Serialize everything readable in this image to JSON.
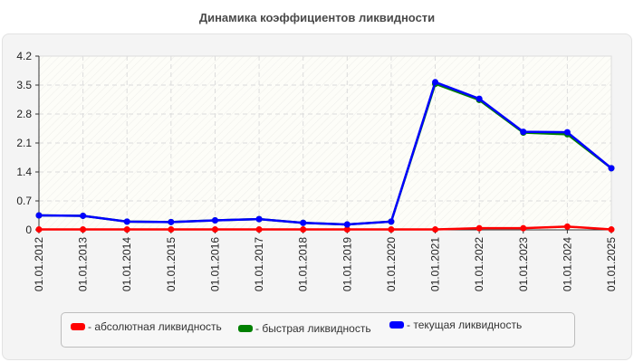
{
  "title": "Динамика коэффициентов ликвидности",
  "legend": [
    {
      "label": "- абсолютная ликвидность",
      "color": "#ff0000"
    },
    {
      "label": "- быстрая ликвидность",
      "color": "#008000"
    },
    {
      "label": "- текущая ликвидность",
      "color": "#0000ff"
    }
  ],
  "chart_data": {
    "type": "line",
    "title": "Динамика коэффициентов ликвидности",
    "xlabel": "",
    "ylabel": "",
    "ylim": [
      0,
      4.2
    ],
    "yticks": [
      0,
      0.7,
      1.4,
      2.1,
      2.8,
      3.5,
      4.2
    ],
    "grid": true,
    "legend_position": "bottom",
    "categories": [
      "01.01.2012",
      "01.01.2013",
      "01.01.2014",
      "01.01.2015",
      "01.01.2016",
      "01.01.2017",
      "01.01.2018",
      "01.01.2019",
      "01.01.2020",
      "01.01.2021",
      "01.01.2022",
      "01.01.2023",
      "01.01.2024",
      "01.01.2025"
    ],
    "series": [
      {
        "name": "абсолютная ликвидность",
        "color": "#ff0000",
        "values": [
          0.01,
          0.01,
          0.01,
          0.01,
          0.01,
          0.01,
          0.01,
          0.01,
          0.01,
          0.01,
          0.04,
          0.04,
          0.08,
          0.01
        ]
      },
      {
        "name": "быстрая ликвидность",
        "color": "#008000",
        "values": [
          0.35,
          0.34,
          0.2,
          0.19,
          0.23,
          0.26,
          0.17,
          0.13,
          0.2,
          3.53,
          3.14,
          2.35,
          2.31,
          1.49
        ]
      },
      {
        "name": "текущая ликвидность",
        "color": "#0000ff",
        "values": [
          0.35,
          0.34,
          0.2,
          0.19,
          0.23,
          0.26,
          0.17,
          0.13,
          0.2,
          3.57,
          3.17,
          2.37,
          2.36,
          1.49
        ]
      }
    ]
  }
}
